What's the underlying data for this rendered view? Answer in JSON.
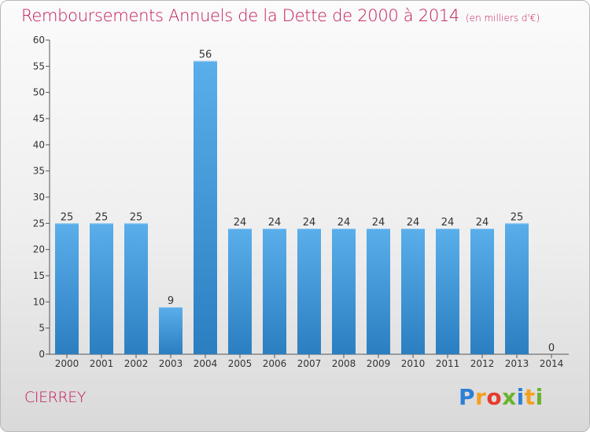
{
  "header": {
    "title": "Remboursements Annuels de la Dette de 2000 à 2014",
    "unit_note": "(en milliers d'€)"
  },
  "footer": {
    "commune": "CIERREY",
    "brand_letters": [
      "P",
      "r",
      "o",
      "x",
      "i",
      "t",
      "i"
    ],
    "brand_colors": [
      "#2e7fd6",
      "#f4a020",
      "#e63a2e",
      "#6ab32d",
      "#2e7fd6",
      "#f4a020",
      "#6ab32d"
    ]
  },
  "chart_data": {
    "type": "bar",
    "categories": [
      "2000",
      "2001",
      "2002",
      "2003",
      "2004",
      "2005",
      "2006",
      "2007",
      "2008",
      "2009",
      "2010",
      "2011",
      "2012",
      "2013",
      "2014"
    ],
    "values": [
      25,
      25,
      25,
      9,
      56,
      24,
      24,
      24,
      24,
      24,
      24,
      24,
      24,
      25,
      0
    ],
    "title": "Remboursements Annuels de la Dette de 2000 à 2014",
    "ylim": [
      0,
      60
    ],
    "yticks": [
      0,
      5,
      10,
      15,
      20,
      25,
      30,
      35,
      40,
      45,
      50,
      55,
      60
    ],
    "grid": false,
    "bar_color_top": "#5aaeea",
    "bar_color_bottom": "#2b7fc1"
  }
}
